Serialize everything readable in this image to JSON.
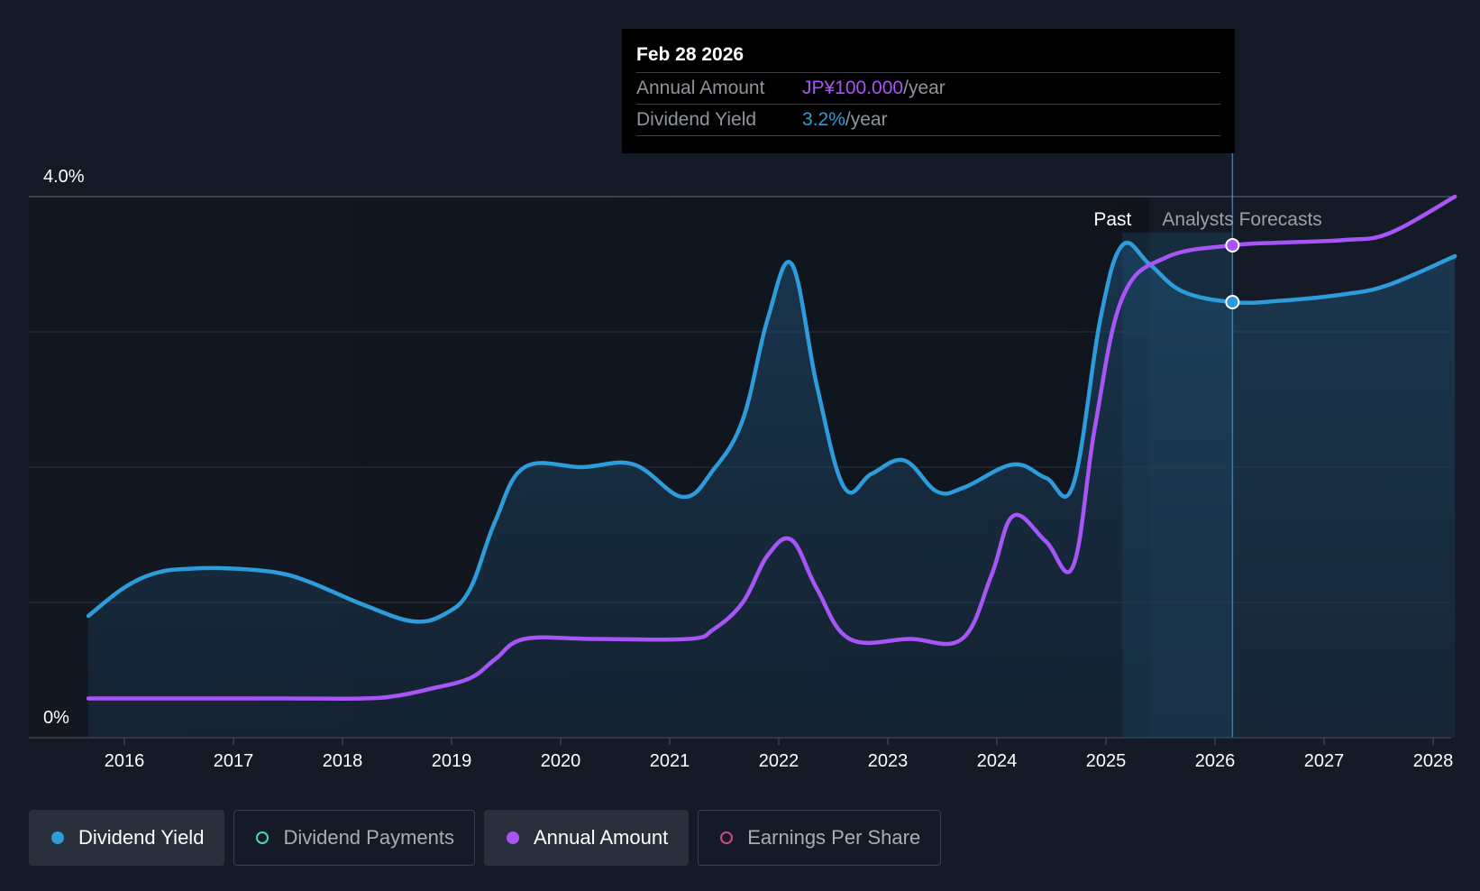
{
  "tooltip": {
    "date": "Feb 28 2026",
    "rows": [
      {
        "label": "Annual Amount",
        "value": "JP¥100.000",
        "unit": "/year",
        "color": "#a855f7"
      },
      {
        "label": "Dividend Yield",
        "value": "3.2%",
        "unit": "/year",
        "color": "#2d9cdb"
      }
    ]
  },
  "legend": [
    {
      "label": "Dividend Yield",
      "color": "#2d9cdb",
      "active": true,
      "filled": true
    },
    {
      "label": "Dividend Payments",
      "color": "#4fd1c5",
      "active": false,
      "filled": false
    },
    {
      "label": "Annual Amount",
      "color": "#a855f7",
      "active": true,
      "filled": true
    },
    {
      "label": "Earnings Per Share",
      "color": "#d0498c",
      "active": false,
      "filled": false
    }
  ],
  "chart_data": {
    "type": "area",
    "y_labels": [
      "4.0%",
      "0%"
    ],
    "ylim": [
      0,
      4.0
    ],
    "xlim": [
      2015.5,
      2028.2
    ],
    "x_tick_labels": [
      "2016",
      "2017",
      "2018",
      "2019",
      "2020",
      "2021",
      "2022",
      "2023",
      "2024",
      "2025",
      "2026",
      "2027",
      "2028"
    ],
    "x_tick_values": [
      2016,
      2017,
      2018,
      2019,
      2020,
      2021,
      2022,
      2023,
      2024,
      2025,
      2026,
      2027,
      2028
    ],
    "grid": true,
    "region_labels": {
      "past": "Past",
      "forecast": "Analysts Forecasts"
    },
    "past_end": 2025.4,
    "marker_x": 2026.16,
    "series": [
      {
        "name": "Dividend Yield",
        "color": "#2d9cdb",
        "fill": true,
        "x": [
          2015.67,
          2016.0,
          2016.3,
          2016.62,
          2017.0,
          2017.4,
          2017.7,
          2018.2,
          2018.65,
          2018.95,
          2019.17,
          2019.4,
          2019.67,
          2020.2,
          2020.67,
          2021.12,
          2021.4,
          2021.67,
          2021.9,
          2022.12,
          2022.35,
          2022.6,
          2022.85,
          2023.15,
          2023.45,
          2023.7,
          2024.15,
          2024.45,
          2024.7,
          2024.95,
          2025.15,
          2025.4,
          2025.7,
          2026.16,
          2026.6,
          2027.2,
          2027.6,
          2028.2
        ],
        "y": [
          0.9,
          1.11,
          1.22,
          1.25,
          1.25,
          1.22,
          1.15,
          0.98,
          0.86,
          0.92,
          1.1,
          1.6,
          2.0,
          2.0,
          2.02,
          1.78,
          1.98,
          2.35,
          3.1,
          3.5,
          2.6,
          1.85,
          1.95,
          2.05,
          1.82,
          1.85,
          2.02,
          1.92,
          1.87,
          3.1,
          3.64,
          3.5,
          3.3,
          3.22,
          3.23,
          3.28,
          3.35,
          3.56
        ]
      },
      {
        "name": "Annual Amount",
        "color": "#a855f7",
        "fill": false,
        "x": [
          2015.67,
          2016.5,
          2017.5,
          2018.2,
          2018.5,
          2018.8,
          2019.17,
          2019.4,
          2019.67,
          2020.3,
          2021.17,
          2021.4,
          2021.67,
          2021.9,
          2022.12,
          2022.35,
          2022.65,
          2023.2,
          2023.68,
          2023.95,
          2024.15,
          2024.45,
          2024.7,
          2024.9,
          2025.15,
          2025.55,
          2026.16,
          2026.6,
          2027.2,
          2027.6,
          2028.2
        ],
        "y": [
          0.29,
          0.29,
          0.29,
          0.29,
          0.31,
          0.36,
          0.44,
          0.58,
          0.73,
          0.73,
          0.73,
          0.8,
          1.0,
          1.35,
          1.46,
          1.1,
          0.73,
          0.73,
          0.73,
          1.2,
          1.64,
          1.45,
          1.27,
          2.3,
          3.25,
          3.55,
          3.64,
          3.66,
          3.68,
          3.73,
          4.0
        ]
      }
    ]
  }
}
